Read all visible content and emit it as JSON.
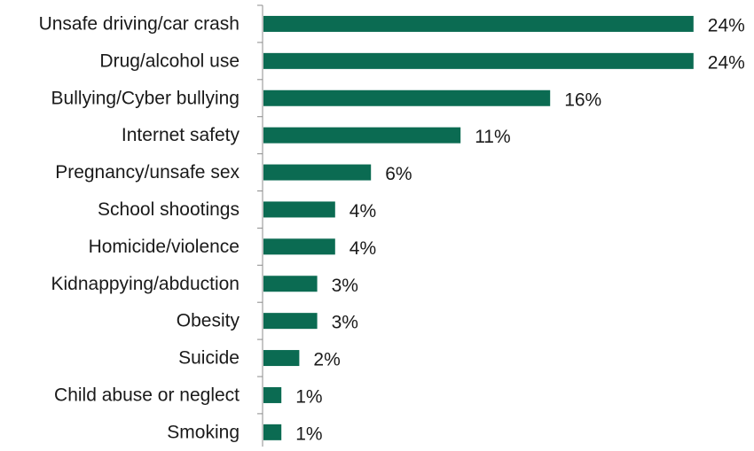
{
  "chart_data": {
    "type": "bar",
    "orientation": "horizontal",
    "title": "",
    "xlabel": "",
    "ylabel": "",
    "categories": [
      "Unsafe driving/car crash",
      "Drug/alcohol use",
      "Bullying/Cyber bullying",
      "Internet safety",
      "Pregnancy/unsafe sex",
      "School shootings",
      "Homicide/violence",
      "Kidnappying/abduction",
      "Obesity",
      "Suicide",
      "Child abuse or neglect",
      "Smoking"
    ],
    "values": [
      24,
      24,
      16,
      11,
      6,
      4,
      4,
      3,
      3,
      2,
      1,
      1
    ],
    "value_labels": [
      "24%",
      "24%",
      "16%",
      "11%",
      "6%",
      "4%",
      "4%",
      "3%",
      "3%",
      "2%",
      "1%",
      "1%"
    ],
    "unit": "%",
    "xlim": [
      0,
      25
    ],
    "grid": false,
    "legend": "none",
    "bar_color": "#0b6b52"
  }
}
